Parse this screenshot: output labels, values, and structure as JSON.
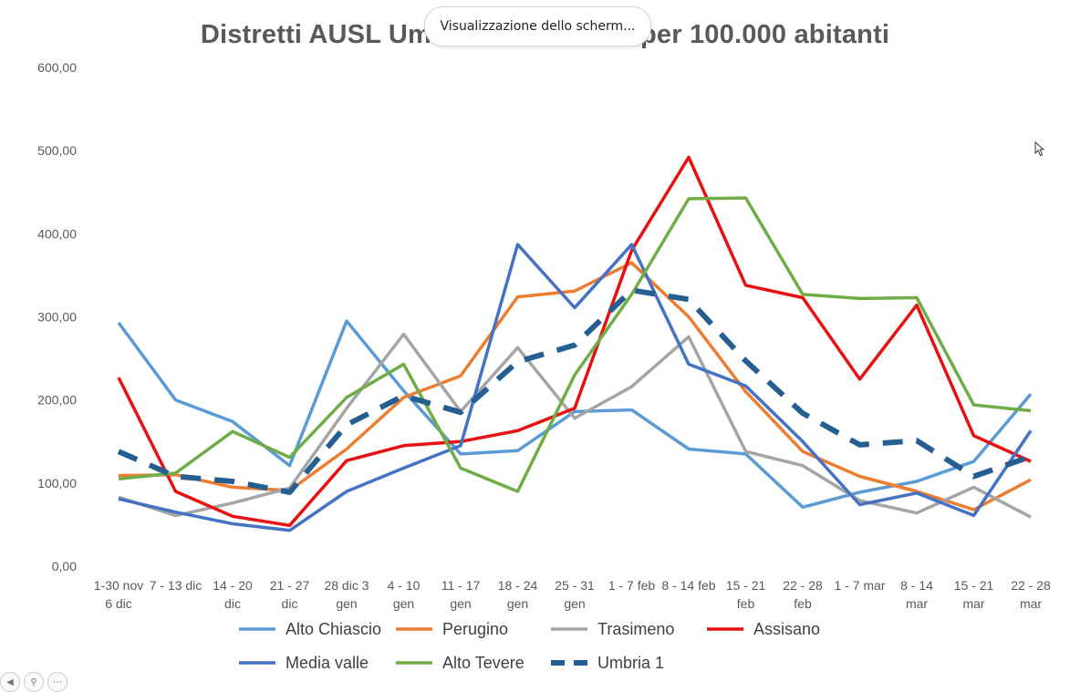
{
  "toast": {
    "text": "Visualizzazione dello scherm..."
  },
  "chart_data": {
    "type": "line",
    "title": "Distretti AUSL Umbria 1 incidenza per 100.000 abitanti",
    "ylim": [
      0,
      600
    ],
    "yticks": [
      "0,00",
      "100,00",
      "200,00",
      "300,00",
      "400,00",
      "500,00",
      "600,00"
    ],
    "grid": false,
    "legend_position": "bottom",
    "categories": [
      [
        "1-30 nov",
        "6 dic"
      ],
      [
        "7 - 13 dic"
      ],
      [
        "14 - 20",
        "dic"
      ],
      [
        "21 - 27",
        "dic"
      ],
      [
        "28 dic 3",
        "gen"
      ],
      [
        "4 - 10",
        "gen"
      ],
      [
        "11 - 17",
        "gen"
      ],
      [
        "18 - 24",
        "gen"
      ],
      [
        "25 - 31",
        "gen"
      ],
      [
        "1 - 7 feb"
      ],
      [
        "8 - 14 feb"
      ],
      [
        "15 - 21",
        "feb"
      ],
      [
        "22 - 28",
        "feb"
      ],
      [
        "1 - 7 mar"
      ],
      [
        "8 - 14",
        "mar"
      ],
      [
        "15 - 21",
        "mar"
      ],
      [
        "22 - 28",
        "mar"
      ]
    ],
    "series": [
      {
        "name": "Alto Chiascio",
        "color": "#5b9bd5",
        "dashed": false,
        "values": [
          293,
          200,
          174,
          121,
          295,
          211,
          135,
          139,
          186,
          188,
          141,
          135,
          71,
          89,
          102,
          126,
          207
        ]
      },
      {
        "name": "Perugino",
        "color": "#ed7d31",
        "dashed": false,
        "values": [
          109,
          110,
          95,
          91,
          141,
          203,
          229,
          324,
          331,
          365,
          300,
          210,
          138,
          108,
          90,
          68,
          104
        ]
      },
      {
        "name": "Trasimeno",
        "color": "#a5a5a5",
        "dashed": false,
        "values": [
          83,
          61,
          76,
          94,
          190,
          279,
          186,
          263,
          178,
          216,
          276,
          138,
          121,
          79,
          64,
          95,
          59
        ]
      },
      {
        "name": "Assisano",
        "color": "#e81010",
        "dashed": false,
        "values": [
          227,
          90,
          60,
          49,
          127,
          145,
          150,
          163,
          190,
          380,
          492,
          338,
          323,
          225,
          314,
          157,
          126
        ]
      },
      {
        "name": "Media valle",
        "color": "#4472c4",
        "dashed": false,
        "values": [
          81,
          65,
          51,
          43,
          90,
          118,
          145,
          387,
          311,
          387,
          243,
          217,
          150,
          74,
          88,
          61,
          163
        ]
      },
      {
        "name": "Alto Tevere",
        "color": "#70ad47",
        "dashed": false,
        "values": [
          105,
          112,
          162,
          131,
          203,
          243,
          118,
          90,
          230,
          327,
          442,
          443,
          327,
          322,
          323,
          194,
          187
        ]
      },
      {
        "name": "Umbria 1",
        "color": "#255e91",
        "dashed": true,
        "values": [
          138,
          108,
          102,
          89,
          170,
          205,
          185,
          246,
          266,
          332,
          321,
          247,
          184,
          146,
          151,
          108,
          132
        ]
      }
    ]
  }
}
